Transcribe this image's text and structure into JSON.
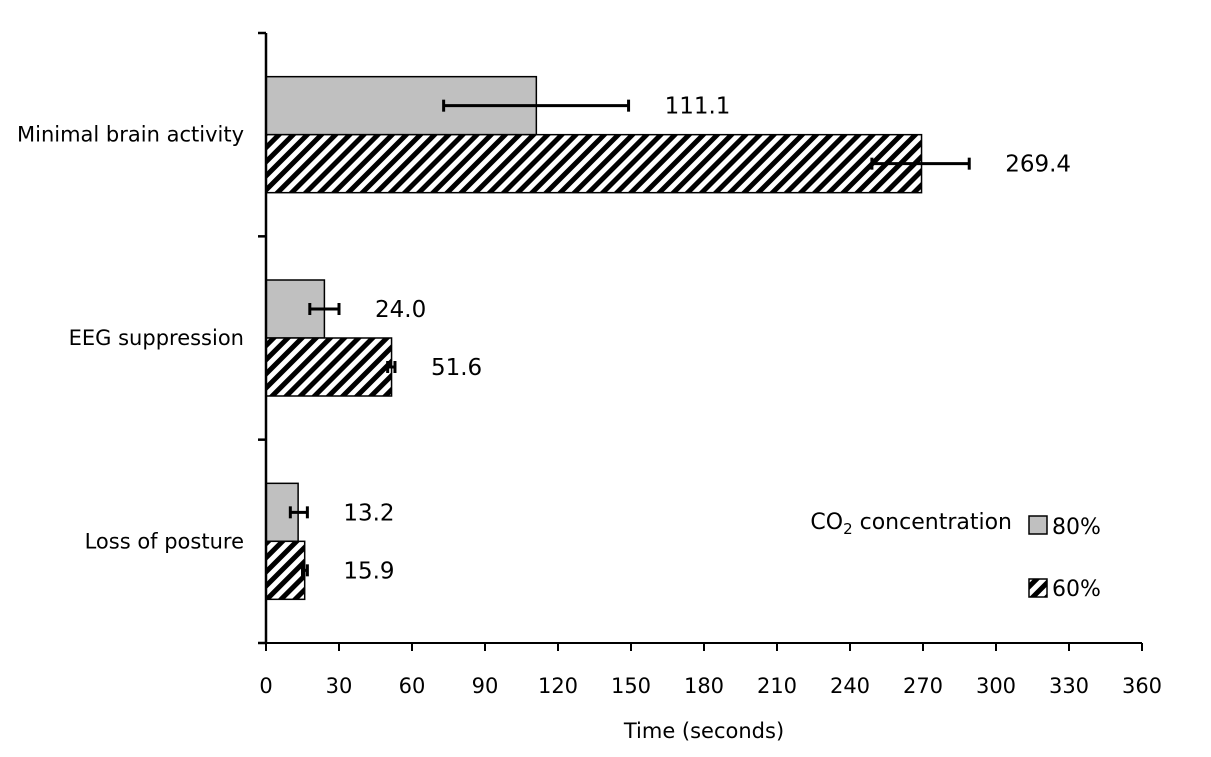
{
  "chart_data": {
    "type": "bar",
    "orientation": "horizontal",
    "categories": [
      "Minimal brain activity",
      "EEG suppression",
      "Loss of posture"
    ],
    "series": [
      {
        "name": "80%",
        "values": [
          111.1,
          24.0,
          13.2
        ],
        "value_labels": [
          "111.1",
          "24.0",
          "13.2"
        ],
        "error_low": [
          73,
          18,
          10
        ],
        "error_high": [
          149,
          30,
          17
        ],
        "fill": "#c0c0c0",
        "pattern": "solid"
      },
      {
        "name": "60%",
        "values": [
          269.4,
          51.6,
          15.9
        ],
        "value_labels": [
          "269.4",
          "51.6",
          "15.9"
        ],
        "error_low": [
          249,
          50,
          15
        ],
        "error_high": [
          289,
          53,
          17
        ],
        "fill": "#ffffff",
        "pattern": "diagonal-hatch"
      }
    ],
    "xlabel": "Time (seconds)",
    "xlim": [
      0,
      360
    ],
    "xticks": [
      "0",
      "30",
      "60",
      "90",
      "120",
      "150",
      "180",
      "210",
      "240",
      "270",
      "300",
      "330",
      "360"
    ],
    "grid": false,
    "legend": {
      "title_main": "CO",
      "title_sub": "2",
      "title_rest": " concentration",
      "placement": "bottom-right"
    },
    "colors": {
      "axis": "#000000",
      "bar_80": "#c0c0c0",
      "hatch": "#000000"
    }
  }
}
